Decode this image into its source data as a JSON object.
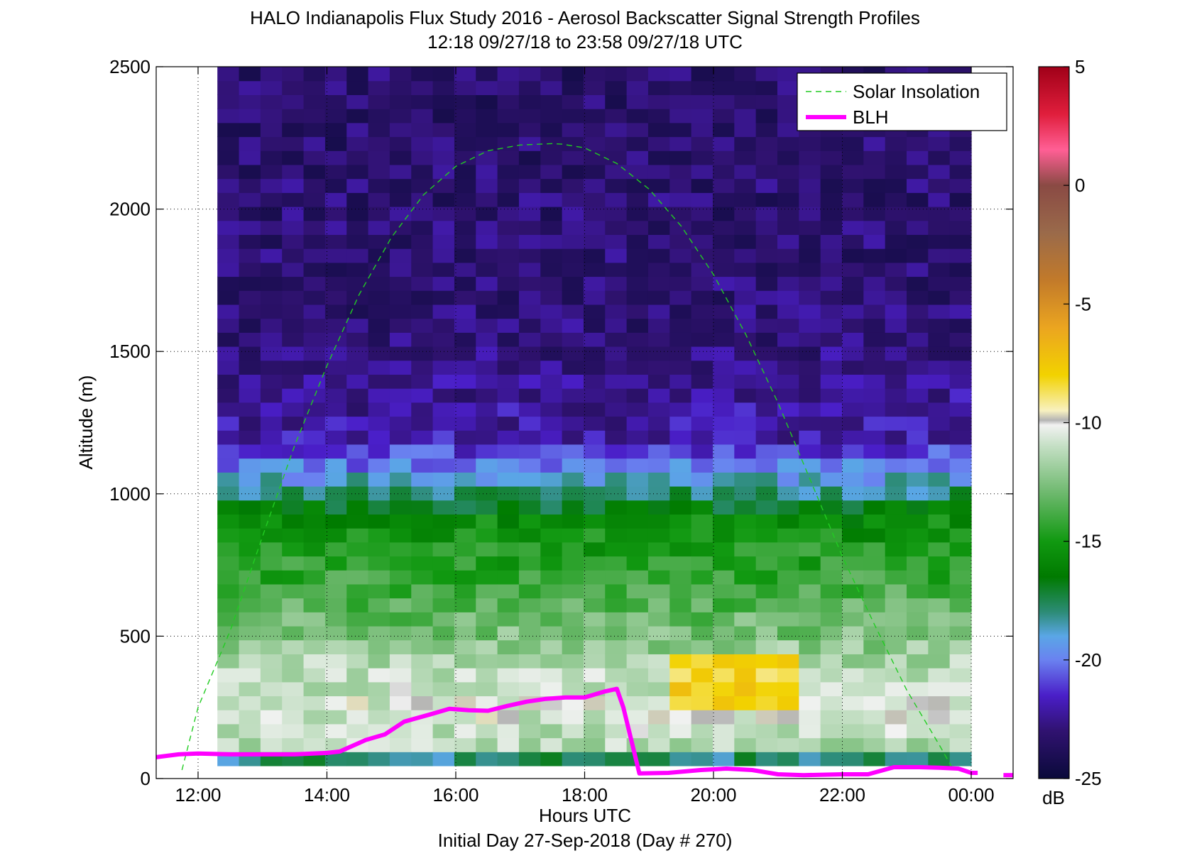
{
  "chart_data": {
    "type": "heatmap",
    "title": "HALO Indianapolis Flux Study 2016 - Aerosol Backscatter Signal Strength Profiles",
    "subtitle": "12:18 09/27/18 to 23:58 09/27/18  UTC",
    "xlabel": "Hours UTC",
    "xlabel2": "Initial Day 27-Sep-2018 (Day # 270)",
    "ylabel": "Altitude (m)",
    "xlim": [
      11.35,
      24.65
    ],
    "ylim": [
      0,
      2500
    ],
    "x_ticks": [
      {
        "value": 12,
        "label": "12:00"
      },
      {
        "value": 14,
        "label": "14:00"
      },
      {
        "value": 16,
        "label": "16:00"
      },
      {
        "value": 18,
        "label": "18:00"
      },
      {
        "value": 20,
        "label": "20:00"
      },
      {
        "value": 22,
        "label": "22:00"
      },
      {
        "value": 24,
        "label": "00:00"
      }
    ],
    "y_ticks": [
      {
        "value": 0,
        "label": "0"
      },
      {
        "value": 500,
        "label": "500"
      },
      {
        "value": 1000,
        "label": "1000"
      },
      {
        "value": 1500,
        "label": "1500"
      },
      {
        "value": 2000,
        "label": "2000"
      },
      {
        "value": 2500,
        "label": "2500"
      }
    ],
    "grid": "dotted",
    "legend_position": "top-right",
    "heatmap": {
      "time_start": 12.3,
      "time_end": 24.0,
      "alt_start": 45,
      "alt_end": 2500,
      "columns": 35,
      "rows": 50,
      "profile_anchors": [
        {
          "alt": 45,
          "db": -23
        },
        {
          "alt": 100,
          "db": -11.5
        },
        {
          "alt": 250,
          "db": -10.5
        },
        {
          "alt": 400,
          "db": -11.5
        },
        {
          "alt": 550,
          "db": -13
        },
        {
          "alt": 750,
          "db": -14.5
        },
        {
          "alt": 900,
          "db": -15.5
        },
        {
          "alt": 1050,
          "db": -19
        },
        {
          "alt": 1200,
          "db": -22
        },
        {
          "alt": 1600,
          "db": -23
        },
        {
          "alt": 2500,
          "db": -23.3
        }
      ],
      "warm_layer": {
        "time_from": 19.0,
        "time_to": 21.0,
        "alt_from": 200,
        "alt_to": 420,
        "db": -8
      }
    },
    "colorbar": {
      "label": "dB",
      "min": -25,
      "max": 5,
      "ticks": [
        {
          "value": 5,
          "label": "5"
        },
        {
          "value": 0,
          "label": "0"
        },
        {
          "value": -5,
          "label": "-5"
        },
        {
          "value": -10,
          "label": "-10"
        },
        {
          "value": -15,
          "label": "-15"
        },
        {
          "value": -20,
          "label": "-20"
        },
        {
          "value": -25,
          "label": "-25"
        }
      ],
      "stops": [
        {
          "db": -25,
          "color": "#0a0a3a"
        },
        {
          "db": -23,
          "color": "#301270"
        },
        {
          "db": -21.5,
          "color": "#4a1ec8"
        },
        {
          "db": -20,
          "color": "#6a82f0"
        },
        {
          "db": -19,
          "color": "#5aa6e6"
        },
        {
          "db": -18,
          "color": "#2d8c78"
        },
        {
          "db": -16.5,
          "color": "#007a00"
        },
        {
          "db": -15,
          "color": "#119911"
        },
        {
          "db": -13,
          "color": "#6cb86c"
        },
        {
          "db": -11,
          "color": "#c4dfc4"
        },
        {
          "db": -10.1,
          "color": "#f2f2f2"
        },
        {
          "db": -9.9,
          "color": "#b4b4b4"
        },
        {
          "db": -9.5,
          "color": "#f8f1c0"
        },
        {
          "db": -8,
          "color": "#f2d200"
        },
        {
          "db": -6,
          "color": "#eba520"
        },
        {
          "db": -4,
          "color": "#c27a2a"
        },
        {
          "db": -2,
          "color": "#9a6a4a"
        },
        {
          "db": 0,
          "color": "#8a4a44"
        },
        {
          "db": 1.5,
          "color": "#ff5f95"
        },
        {
          "db": 3,
          "color": "#e01e3c"
        },
        {
          "db": 5,
          "color": "#a00018"
        }
      ]
    },
    "series": [
      {
        "name": "Solar Insolation",
        "style": "dashed",
        "color": "#22cc22",
        "x": [
          11.75,
          12.0,
          12.5,
          13.0,
          13.5,
          14.0,
          14.5,
          15.0,
          15.5,
          16.0,
          16.5,
          17.0,
          17.5,
          17.65,
          18.0,
          18.5,
          19.0,
          19.5,
          20.0,
          20.5,
          21.0,
          21.5,
          22.0,
          22.5,
          23.0,
          23.5,
          23.7
        ],
        "y": [
          30,
          250,
          520,
          850,
          1170,
          1450,
          1700,
          1900,
          2050,
          2150,
          2205,
          2225,
          2230,
          2228,
          2215,
          2160,
          2070,
          1940,
          1770,
          1560,
          1320,
          1050,
          780,
          540,
          310,
          120,
          40
        ]
      },
      {
        "name": "BLH",
        "style": "solid",
        "color": "#ff00ff",
        "x": [
          11.35,
          11.7,
          12.0,
          12.5,
          13.0,
          13.5,
          14.0,
          14.2,
          14.6,
          14.9,
          15.2,
          15.6,
          15.9,
          16.2,
          16.5,
          16.8,
          17.1,
          17.4,
          17.7,
          18.0,
          18.3,
          18.5,
          18.6,
          18.85,
          19.3,
          19.8,
          20.2,
          20.6,
          21.0,
          21.4,
          22.0,
          22.4,
          22.8,
          23.2,
          23.5,
          23.8,
          24.0,
          24.1
        ],
        "y": [
          75,
          85,
          88,
          85,
          85,
          85,
          90,
          95,
          135,
          155,
          200,
          225,
          245,
          240,
          238,
          255,
          270,
          280,
          285,
          285,
          305,
          315,
          250,
          18,
          20,
          30,
          35,
          30,
          15,
          12,
          15,
          15,
          40,
          40,
          38,
          35,
          20,
          20
        ]
      },
      {
        "name": "",
        "style": "solid",
        "color": "#ff00ff",
        "x": [
          24.5,
          24.65
        ],
        "y": [
          12,
          12
        ]
      }
    ]
  }
}
